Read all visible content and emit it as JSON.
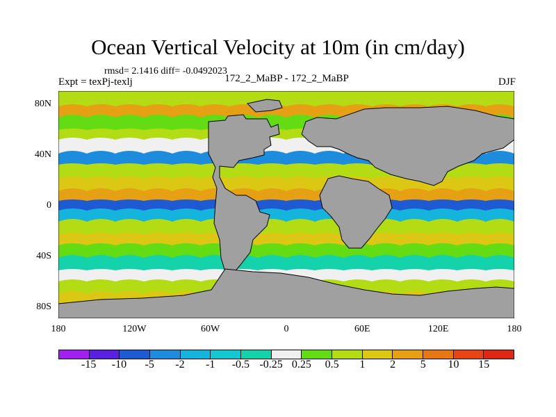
{
  "title": "Ocean Vertical Velocity at 10m (in cm/day)",
  "stats": "rmsd= 2.1416 diff= -0.0492023",
  "expt": "Expt = texPj-texlj",
  "runs": "172_2_MaBP - 172_2_MaBP",
  "season": "DJF",
  "map": {
    "y_axis_labels": [
      "80N",
      "40N",
      "0",
      "40S",
      "80S"
    ],
    "x_axis_labels": [
      "180",
      "120W",
      "60W",
      "0",
      "60E",
      "120E",
      "180"
    ],
    "land_color": "#a0a0a0",
    "ocean_color": "#f0f0f0"
  },
  "colorbar": {
    "labels": [
      "-15",
      "-10",
      "-5",
      "-2",
      "-1",
      "-0.5",
      "-0.25",
      "0.25",
      "0.5",
      "1",
      "2",
      "5",
      "10",
      "15"
    ],
    "colors": [
      "#a020f0",
      "#5a20e0",
      "#1e5ad2",
      "#1e8cdc",
      "#14b4dc",
      "#14c8d2",
      "#14d2aa",
      "#f0f0f0",
      "#64dc14",
      "#b4dc14",
      "#dcc814",
      "#e6a014",
      "#e67814",
      "#e64614",
      "#dc2814"
    ]
  }
}
